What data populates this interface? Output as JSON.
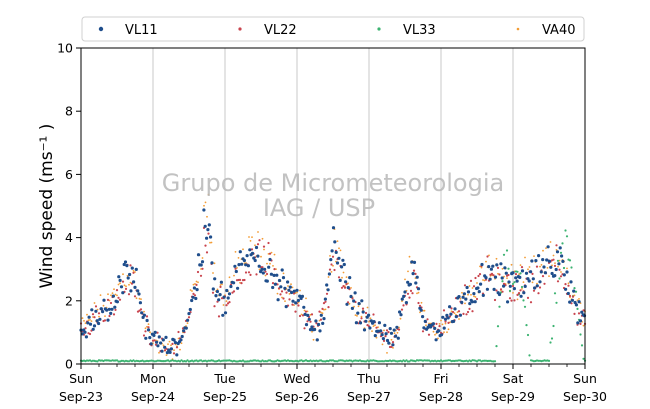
{
  "chart_data": {
    "type": "scatter",
    "ylabel": "Wind speed (ms⁻¹ )",
    "ylim": [
      0,
      10
    ],
    "yticks": [
      0,
      2,
      4,
      6,
      8,
      10
    ],
    "xlim": [
      "2018-09-23",
      "2018-09-30"
    ],
    "xticks": [
      {
        "day": "Sun",
        "date": "Sep-23"
      },
      {
        "day": "Mon",
        "date": "Sep-24"
      },
      {
        "day": "Tue",
        "date": "Sep-25"
      },
      {
        "day": "Wed",
        "date": "Sep-26"
      },
      {
        "day": "Thu",
        "date": "Sep-27"
      },
      {
        "day": "Fri",
        "date": "Sep-28"
      },
      {
        "day": "Sat",
        "date": "Sep-29"
      },
      {
        "day": "Sun",
        "date": "Sep-30"
      }
    ],
    "grid": "vertical at each day",
    "legend": {
      "placement": "top, above plot",
      "ncols": 4
    },
    "watermark": {
      "line1": "Grupo de Micrometeorologia",
      "line2": "IAG / USP"
    },
    "series": [
      {
        "name": "VL11",
        "color": "#1f4e8c",
        "x_hours": [
          0,
          3,
          6,
          9,
          12,
          15,
          18,
          21,
          24,
          27,
          30,
          33,
          36,
          39,
          42,
          45,
          48,
          51,
          54,
          57,
          60,
          63,
          66,
          69,
          72,
          75,
          78,
          81,
          84,
          87,
          90,
          93,
          96,
          99,
          102,
          105,
          108,
          111,
          114,
          117,
          120,
          123,
          126,
          129,
          132,
          135,
          138,
          141,
          144,
          147,
          150,
          153,
          156,
          159,
          162,
          165,
          168
        ],
        "values": [
          0.9,
          1.3,
          1.6,
          1.8,
          2.2,
          2.8,
          2.6,
          1.3,
          0.8,
          0.6,
          0.5,
          0.7,
          1.6,
          2.8,
          4.6,
          2.2,
          2.0,
          2.6,
          3.1,
          3.4,
          3.4,
          3.1,
          2.6,
          2.3,
          2.0,
          1.6,
          1.1,
          1.5,
          3.6,
          2.8,
          2.2,
          1.6,
          1.4,
          1.1,
          0.8,
          0.9,
          2.1,
          3.0,
          1.5,
          1.0,
          1.2,
          1.5,
          1.8,
          2.0,
          2.2,
          3.0,
          2.6,
          2.6,
          2.5,
          2.5,
          2.7,
          2.9,
          3.0,
          3.3,
          2.4,
          1.8,
          1.5
        ]
      },
      {
        "name": "VL22",
        "color": "#c9444e",
        "x_hours": [
          0,
          3,
          6,
          9,
          12,
          15,
          18,
          21,
          24,
          27,
          30,
          33,
          36,
          39,
          42,
          45,
          48,
          51,
          54,
          57,
          60,
          63,
          66,
          69,
          72,
          75,
          78,
          81,
          84,
          87,
          90,
          93,
          96,
          99,
          102,
          105,
          108,
          111,
          114,
          117,
          120,
          123,
          126,
          129,
          132,
          135,
          138,
          141,
          144,
          147,
          150,
          153,
          156,
          159,
          162,
          165,
          168
        ],
        "values": [
          1.0,
          1.2,
          1.5,
          1.7,
          2.0,
          2.6,
          2.5,
          1.2,
          0.9,
          0.6,
          0.5,
          0.8,
          1.5,
          2.6,
          4.2,
          2.1,
          2.1,
          2.5,
          3.0,
          3.2,
          3.3,
          3.0,
          2.5,
          2.2,
          1.9,
          1.5,
          1.2,
          1.6,
          3.2,
          2.6,
          2.1,
          1.5,
          1.3,
          1.0,
          0.8,
          0.9,
          2.0,
          2.8,
          1.4,
          1.1,
          1.3,
          1.6,
          1.8,
          2.1,
          2.3,
          2.9,
          2.5,
          2.5,
          2.4,
          2.5,
          2.6,
          2.8,
          2.9,
          3.2,
          2.3,
          1.7,
          1.4
        ]
      },
      {
        "name": "VL33",
        "color": "#3cb371",
        "x_hours": [
          0,
          6,
          12,
          18,
          24,
          30,
          36,
          42,
          48,
          54,
          60,
          66,
          72,
          78,
          84,
          90,
          96,
          102,
          108,
          114,
          120,
          126,
          132,
          138,
          141,
          144,
          147,
          150,
          153,
          156,
          159,
          162,
          165,
          168
        ],
        "values": [
          0.1,
          0.1,
          0.1,
          0.1,
          0.1,
          0.1,
          0.1,
          0.1,
          0.1,
          0.1,
          0.1,
          0.1,
          0.1,
          0.1,
          0.1,
          0.1,
          0.1,
          0.1,
          0.1,
          0.1,
          0.1,
          0.1,
          0.1,
          0.1,
          3.2,
          2.8,
          2.4,
          0.05,
          0.05,
          0.05,
          2.9,
          3.8,
          2.2,
          0.05
        ]
      },
      {
        "name": "VA40",
        "color": "#f39c34",
        "x_hours": [
          0,
          3,
          6,
          9,
          12,
          15,
          18,
          21,
          24,
          27,
          30,
          33,
          36,
          39,
          42,
          45,
          48,
          51,
          54,
          57,
          60,
          63,
          66,
          69,
          72,
          75,
          78,
          81,
          84,
          87,
          90,
          93,
          96,
          99,
          102,
          105,
          108,
          111,
          114,
          117,
          120,
          123,
          126,
          129,
          132,
          135,
          138,
          141,
          144,
          147,
          150,
          153,
          156,
          159,
          162,
          165,
          168
        ],
        "values": [
          1.1,
          1.4,
          1.7,
          1.9,
          2.3,
          2.9,
          2.7,
          1.4,
          0.7,
          0.5,
          0.4,
          0.6,
          1.7,
          3.0,
          5.2,
          2.4,
          2.2,
          2.8,
          3.3,
          3.6,
          3.5,
          3.2,
          2.7,
          2.4,
          2.1,
          1.7,
          1.0,
          1.4,
          3.8,
          3.0,
          2.3,
          1.7,
          1.5,
          1.2,
          0.6,
          0.8,
          2.3,
          3.2,
          1.6,
          1.0,
          1.1,
          1.4,
          1.9,
          2.2,
          2.4,
          3.1,
          2.7,
          2.7,
          2.6,
          2.6,
          2.8,
          3.0,
          3.1,
          3.6,
          2.5,
          1.9,
          1.6
        ]
      }
    ]
  }
}
